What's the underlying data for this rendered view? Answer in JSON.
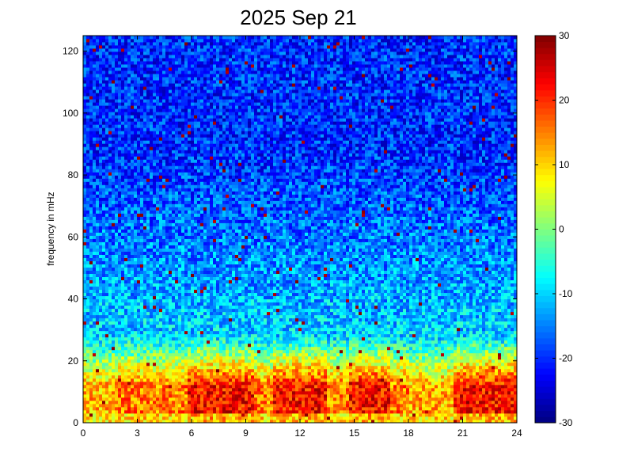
{
  "chart_data": {
    "type": "heatmap",
    "title": "2025 Sep 21",
    "xlabel": "",
    "ylabel": "frequency in mHz",
    "xlim": [
      0,
      24
    ],
    "ylim": [
      0,
      125
    ],
    "x_ticks": [
      0,
      3,
      6,
      9,
      12,
      15,
      18,
      21,
      24
    ],
    "x_tick_labels": [
      "0",
      "3",
      "6",
      "9",
      "12",
      "15",
      "18",
      "21",
      "24"
    ],
    "y_ticks": [
      0,
      20,
      40,
      60,
      80,
      100,
      120
    ],
    "y_tick_labels": [
      "0",
      "20",
      "40",
      "60",
      "80",
      "100",
      "120"
    ],
    "colorbar": {
      "colormap": "jet",
      "clim": [
        -30,
        30
      ],
      "ticks": [
        -30,
        -20,
        -10,
        0,
        10,
        20,
        30
      ],
      "tick_labels": [
        "-30",
        "-20",
        "-10",
        "0",
        "10",
        "20",
        "30"
      ]
    },
    "grid": false,
    "legend": "none",
    "description_of_values": {
      "high_freq_level": -20,
      "low_freq_level": 22,
      "low_freq_band_mhz": [
        0,
        20
      ],
      "elevated_periods_hours": [
        [
          5.8,
          9.5
        ],
        [
          10.5,
          13.5
        ],
        [
          14.8,
          17
        ],
        [
          20.5,
          24
        ]
      ],
      "quiet_periods_hours": [
        [
          0,
          1.8
        ],
        [
          18,
          20.5
        ]
      ]
    }
  }
}
